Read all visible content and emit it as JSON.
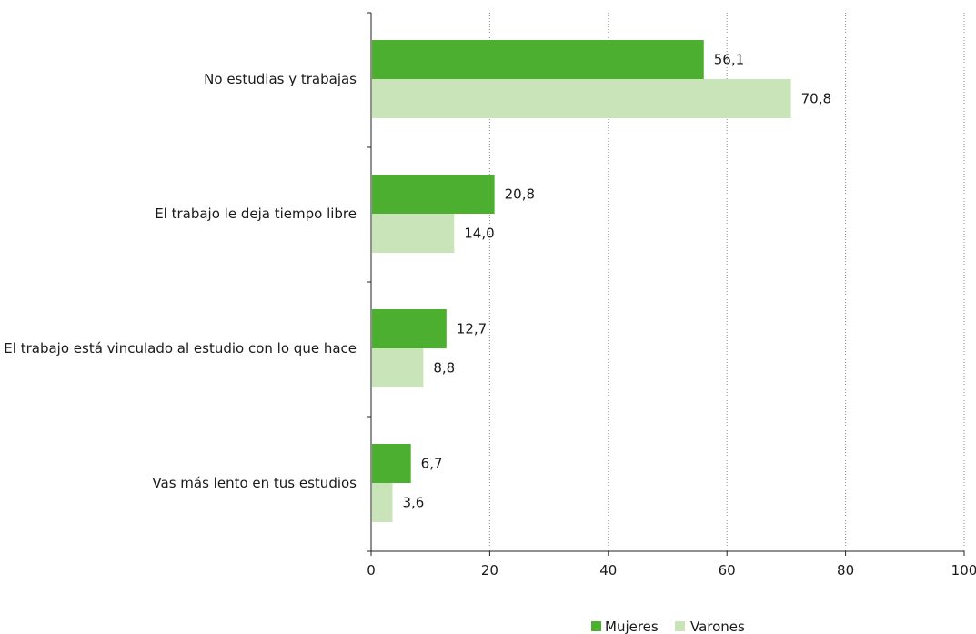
{
  "chart_data": {
    "type": "bar",
    "orientation": "horizontal",
    "categories": [
      "No estudias y trabajas",
      "El trabajo le deja tiempo libre",
      "El trabajo está vinculado al estudio con lo que hace",
      "Vas más lento en tus estudios"
    ],
    "series": [
      {
        "name": "Mujeres",
        "color": "#4caf2f",
        "values": [
          56.1,
          20.8,
          12.7,
          6.7
        ],
        "labels": [
          "56,1",
          "20,8",
          "12,7",
          "6,7"
        ]
      },
      {
        "name": "Varones",
        "color": "#c8e4b8",
        "values": [
          70.8,
          14.0,
          8.8,
          3.6
        ],
        "labels": [
          "70,8",
          "14,0",
          "8,8",
          "3,6"
        ]
      }
    ],
    "xlim": [
      0,
      100
    ],
    "xticks": [
      0,
      20,
      40,
      60,
      80,
      100
    ],
    "grid": "vertical dotted",
    "legend_position": "bottom-right"
  }
}
